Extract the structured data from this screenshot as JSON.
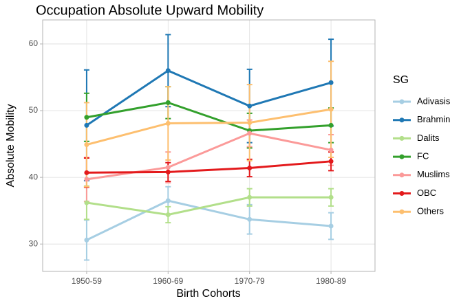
{
  "chart_data": {
    "type": "line",
    "title": "Occupation Absolute Upward Mobility",
    "x_label": "Birth Cohorts",
    "y_label": "Absolute Mobility",
    "legend_title": "SG",
    "legend": "right",
    "grid": true,
    "categories": [
      "1950-59",
      "1960-69",
      "1970-79",
      "1980-89"
    ],
    "ylim": [
      25.9,
      63.6
    ],
    "yticks": [
      30,
      40,
      50,
      60
    ],
    "series": [
      {
        "name": "Adivasis",
        "color": "#a6cee3",
        "values": [
          30.6,
          36.5,
          33.7,
          32.7
        ],
        "errors": [
          3.0,
          2.1,
          2.2,
          2.0
        ]
      },
      {
        "name": "Brahmin",
        "color": "#1f78b4",
        "values": [
          47.8,
          56.0,
          50.7,
          54.2
        ],
        "errors": [
          8.3,
          5.4,
          5.5,
          6.5
        ]
      },
      {
        "name": "Dalits",
        "color": "#b2df8a",
        "values": [
          36.2,
          34.4,
          37.0,
          37.0
        ],
        "errors": [
          2.5,
          1.2,
          1.3,
          1.3
        ]
      },
      {
        "name": "FC",
        "color": "#33a02c",
        "values": [
          49.0,
          51.2,
          47.0,
          47.8
        ],
        "errors": [
          3.6,
          2.4,
          2.6,
          2.6
        ]
      },
      {
        "name": "Muslims",
        "color": "#fb9a99",
        "values": [
          39.7,
          41.5,
          46.6,
          44.1
        ],
        "errors": [
          3.3,
          2.3,
          2.0,
          2.3
        ]
      },
      {
        "name": "OBC",
        "color": "#e31a1c",
        "values": [
          40.7,
          40.8,
          41.4,
          42.4
        ],
        "errors": [
          2.2,
          1.4,
          1.3,
          1.4
        ]
      },
      {
        "name": "Others",
        "color": "#fdbf6f",
        "values": [
          44.9,
          48.1,
          48.2,
          50.2
        ],
        "errors": [
          6.3,
          5.5,
          5.7,
          7.2
        ]
      }
    ]
  }
}
